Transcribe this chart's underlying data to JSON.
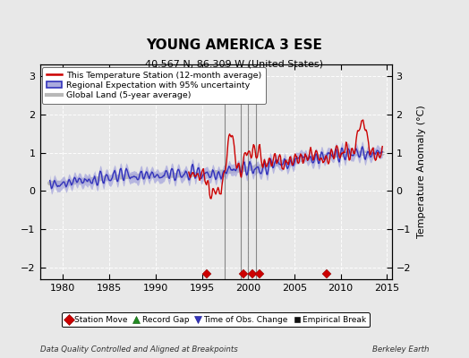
{
  "title": "YOUNG AMERICA 3 ESE",
  "subtitle": "40.567 N, 86.309 W (United States)",
  "ylabel": "Temperature Anomaly (°C)",
  "footer_left": "Data Quality Controlled and Aligned at Breakpoints",
  "footer_right": "Berkeley Earth",
  "xlim": [
    1977.5,
    2015.5
  ],
  "ylim": [
    -2.3,
    3.3
  ],
  "yticks": [
    -2,
    -1,
    0,
    1,
    2,
    3
  ],
  "xticks": [
    1980,
    1985,
    1990,
    1995,
    2000,
    2005,
    2010,
    2015
  ],
  "bg_color": "#e8e8e8",
  "plot_bg_color": "#e8e8e8",
  "station_color": "#cc0000",
  "regional_color": "#3333bb",
  "regional_fill_color": "#aaaadd",
  "global_color": "#b8b8b8",
  "legend_entries": [
    "This Temperature Station (12-month average)",
    "Regional Expectation with 95% uncertainty",
    "Global Land (5-year average)"
  ],
  "marker_legend": [
    {
      "label": "Station Move",
      "color": "#cc0000",
      "marker": "D"
    },
    {
      "label": "Record Gap",
      "color": "#228B22",
      "marker": "^"
    },
    {
      "label": "Time of Obs. Change",
      "color": "#3333bb",
      "marker": "v"
    },
    {
      "label": "Empirical Break",
      "color": "#111111",
      "marker": "s"
    }
  ],
  "station_move_years": [
    1995.5,
    1999.5,
    2000.5,
    2001.2,
    2008.5
  ],
  "vertical_lines": [
    1997.5,
    1999.2,
    2000.0,
    2000.8
  ],
  "vertical_line_color": "#888888"
}
